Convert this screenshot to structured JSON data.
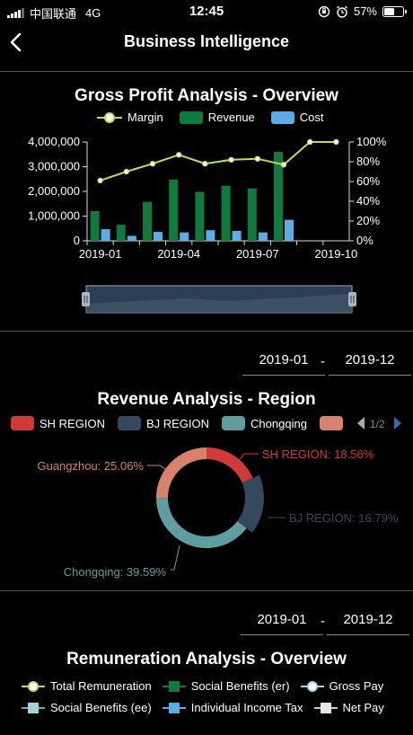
{
  "status_bar": {
    "carrier": "中国联通",
    "network": "4G",
    "time": "12:45",
    "battery": "57%",
    "battery_level": 0.57
  },
  "nav": {
    "title": "Business Intelligence"
  },
  "gross_profit": {
    "title": "Gross Profit Analysis - Overview",
    "legend": [
      "Margin",
      "Revenue",
      "Cost"
    ]
  },
  "revenue_region": {
    "title": "Revenue Analysis - Region",
    "date_from": "2019-01",
    "date_to": "2019-12",
    "date_sep": "-",
    "legend": [
      "SH REGION",
      "BJ REGION",
      "Chongqing"
    ],
    "pager": "1/2"
  },
  "remuneration": {
    "title": "Remuneration Analysis - Overview",
    "date_from": "2019-01",
    "date_to": "2019-12",
    "date_sep": "-",
    "legend": [
      "Total Remuneration",
      "Social Benefits (er)",
      "Gross Pay",
      "Social Benefits (ee)",
      "Individual Income Tax",
      "Net Pay"
    ]
  },
  "colors": {
    "revenue": "#0e7a3c",
    "cost": "#5aaee6",
    "margin": "#b9e05a",
    "sh": "#d23a3a",
    "bj": "#34495e",
    "chongqing": "#5f9ea0",
    "guangzhou": "#d7826a"
  },
  "chart_data": [
    {
      "type": "bar",
      "categories": [
        "2019-01",
        "2019-02",
        "2019-03",
        "2019-04",
        "2019-05",
        "2019-06",
        "2019-07",
        "2019-08",
        "2019-09",
        "2019-10"
      ],
      "x_tick_labels": [
        "2019-01",
        "2019-04",
        "2019-07",
        "2019-10"
      ],
      "y_tick_labels": [
        "0",
        "1,000,000",
        "2,000,000",
        "3,000,000",
        "4,000,000"
      ],
      "y2_tick_labels": [
        "0%",
        "20%",
        "40%",
        "60%",
        "80%",
        "100%"
      ],
      "ylim": [
        0,
        4000000
      ],
      "y2lim": [
        0,
        100
      ],
      "series": [
        {
          "name": "Revenue",
          "kind": "bar",
          "values": [
            1200000,
            650000,
            1580000,
            2480000,
            1980000,
            2230000,
            2120000,
            3600000,
            null,
            null
          ]
        },
        {
          "name": "Cost",
          "kind": "bar",
          "values": [
            470000,
            200000,
            360000,
            340000,
            430000,
            400000,
            340000,
            850000,
            null,
            null
          ]
        },
        {
          "name": "Margin",
          "kind": "line",
          "axis": "right",
          "values": [
            61,
            70,
            78,
            87,
            78,
            82,
            83,
            77,
            100,
            100
          ]
        }
      ]
    },
    {
      "type": "pie",
      "labels": [
        "SH REGION",
        "BJ REGION",
        "Chongqing",
        "Guangzhou"
      ],
      "values": [
        18.56,
        16.79,
        39.59,
        25.06
      ],
      "label_texts": [
        "SH REGION: 18.56%",
        "BJ REGION: 16.79%",
        "Chongqing: 39.59%",
        "Guangzhou: 25.06%"
      ]
    }
  ]
}
